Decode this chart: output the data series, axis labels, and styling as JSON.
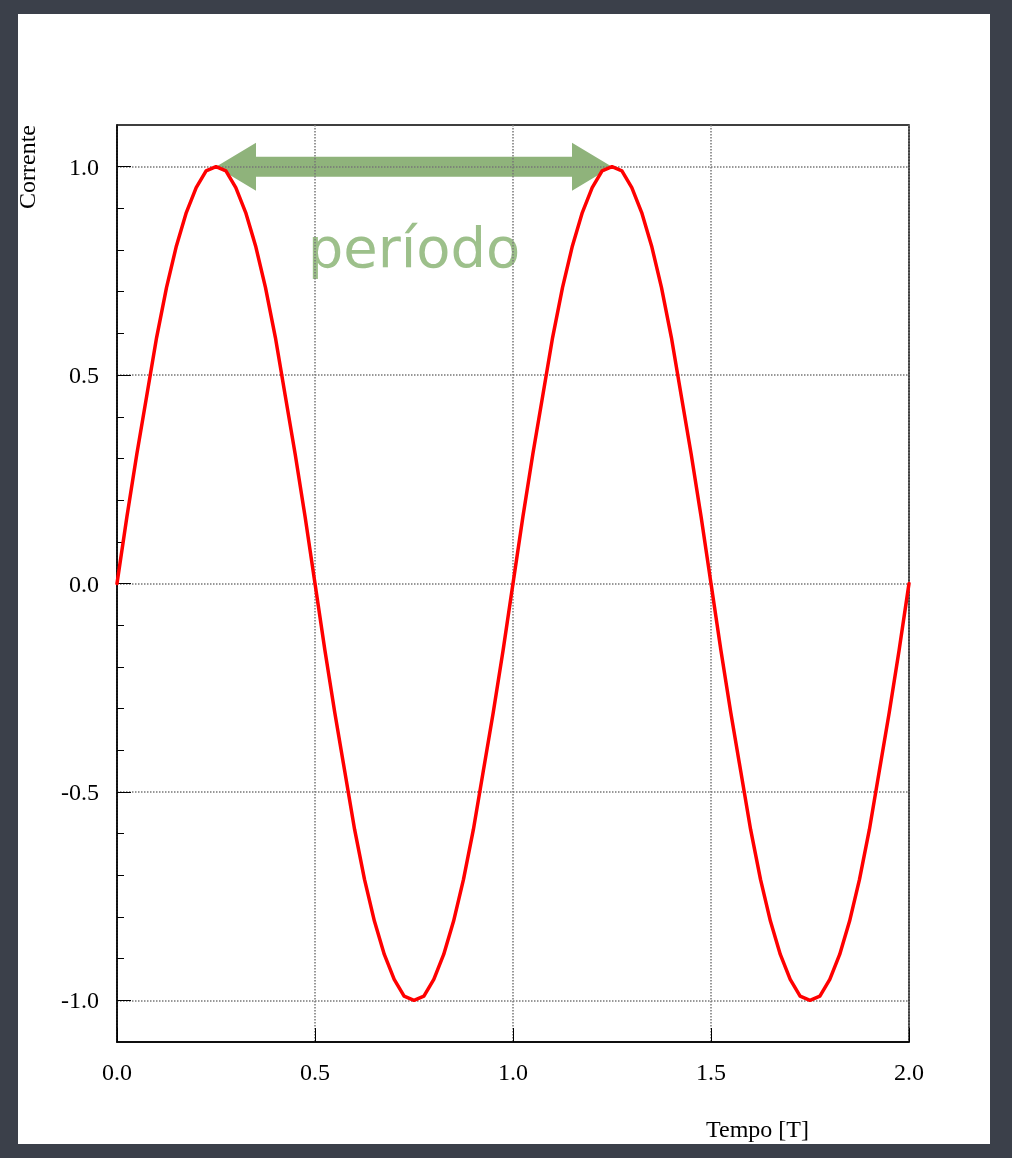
{
  "chart_data": {
    "type": "line",
    "xlabel": "Tempo [T]",
    "ylabel": "Corrente",
    "x": [
      0,
      0.025,
      0.05,
      0.075,
      0.1,
      0.125,
      0.15,
      0.175,
      0.2,
      0.225,
      0.25,
      0.275,
      0.3,
      0.325,
      0.35,
      0.375,
      0.4,
      0.425,
      0.45,
      0.475,
      0.5,
      0.525,
      0.55,
      0.575,
      0.6,
      0.625,
      0.65,
      0.675,
      0.7,
      0.725,
      0.75,
      0.775,
      0.8,
      0.825,
      0.85,
      0.875,
      0.9,
      0.925,
      0.95,
      0.975,
      1,
      1.025,
      1.05,
      1.075,
      1.1,
      1.125,
      1.15,
      1.175,
      1.2,
      1.225,
      1.25,
      1.275,
      1.3,
      1.325,
      1.35,
      1.375,
      1.4,
      1.425,
      1.45,
      1.475,
      1.5,
      1.525,
      1.55,
      1.575,
      1.6,
      1.625,
      1.65,
      1.675,
      1.7,
      1.725,
      1.75,
      1.775,
      1.8,
      1.825,
      1.85,
      1.875,
      1.9,
      1.925,
      1.95,
      1.975,
      2
    ],
    "series": [
      {
        "color": "#ff0000",
        "values": [
          0,
          0.16,
          0.31,
          0.45,
          0.59,
          0.71,
          0.81,
          0.89,
          0.95,
          0.99,
          1,
          0.99,
          0.95,
          0.89,
          0.81,
          0.71,
          0.59,
          0.45,
          0.31,
          0.16,
          0,
          -0.16,
          -0.31,
          -0.45,
          -0.59,
          -0.71,
          -0.81,
          -0.89,
          -0.95,
          -0.99,
          -1,
          -0.99,
          -0.95,
          -0.89,
          -0.81,
          -0.71,
          -0.59,
          -0.45,
          -0.31,
          -0.16,
          0,
          0.16,
          0.31,
          0.45,
          0.59,
          0.71,
          0.81,
          0.89,
          0.95,
          0.99,
          1,
          0.99,
          0.95,
          0.89,
          0.81,
          0.71,
          0.59,
          0.45,
          0.31,
          0.16,
          0,
          -0.16,
          -0.31,
          -0.45,
          -0.59,
          -0.71,
          -0.81,
          -0.89,
          -0.95,
          -0.99,
          -1,
          -0.99,
          -0.95,
          -0.89,
          -0.81,
          -0.71,
          -0.59,
          -0.45,
          -0.31,
          -0.16,
          0
        ]
      }
    ],
    "xlim": [
      0,
      2
    ],
    "xticks": [
      {
        "value": 0,
        "label": "0.0"
      },
      0.5,
      {
        "value": 1,
        "label": "1.0"
      },
      1.5,
      {
        "value": 2,
        "label": "2.0"
      }
    ],
    "ylim": [
      -1.1,
      1.1
    ],
    "yticks": [
      {
        "value": -1,
        "label": "-1.0"
      },
      -0.5,
      {
        "value": 0,
        "label": "0.0"
      },
      0.5,
      {
        "value": 1,
        "label": "1.0"
      }
    ],
    "grid": true,
    "marker": "none",
    "line_style": "solid",
    "annotations": [
      "período"
    ]
  }
}
